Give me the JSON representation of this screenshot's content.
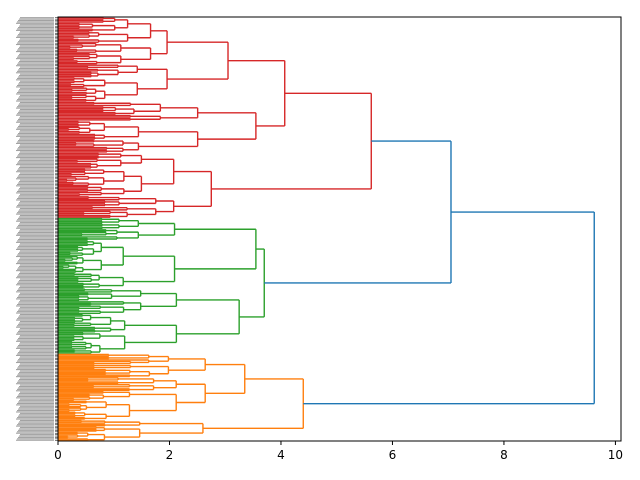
{
  "chart_data": {
    "type": "dendrogram",
    "orientation": "horizontal",
    "title": "",
    "xlabel": "",
    "ylabel": "",
    "xlim": [
      0,
      10.1
    ],
    "xticks": [
      0,
      2,
      4,
      6,
      8,
      10
    ],
    "xtick_labels": [
      "0",
      "2",
      "4",
      "6",
      "8",
      "10"
    ],
    "leaf_count_total": 300,
    "colors": {
      "cluster_red": "#d62728",
      "cluster_green": "#2ca02c",
      "cluster_orange": "#ff7f0e",
      "above_threshold": "#1f77b4",
      "axis": "#000000"
    },
    "clusters": [
      {
        "name": "red",
        "color": "#d62728",
        "leaf_count": 140,
        "leaf_span": [
          0.0,
          0.4737
        ],
        "root_height": 5.62,
        "subclusters": [
          {
            "span": [
              0.0,
              0.2
            ],
            "height": 3.05
          },
          {
            "span": [
              0.2,
              0.32
            ],
            "height": 3.55
          },
          {
            "span": [
              0.32,
              0.4737
            ],
            "height": 2.75
          }
        ]
      },
      {
        "name": "green",
        "color": "#2ca02c",
        "leaf_count": 96,
        "leaf_span": [
          0.4737,
          0.7944
        ],
        "root_height": 3.7,
        "subclusters": [
          {
            "span": [
              0.4737,
              0.64
            ],
            "height": 3.55
          },
          {
            "span": [
              0.64,
              0.7944
            ],
            "height": 3.25
          }
        ]
      },
      {
        "name": "orange",
        "color": "#ff7f0e",
        "leaf_count": 64,
        "leaf_span": [
          0.7944,
          1.0
        ],
        "root_height": 4.4,
        "subclusters": [
          {
            "span": [
              0.7944,
              0.95
            ],
            "height": 3.35
          },
          {
            "span": [
              0.95,
              1.0
            ],
            "height": 2.6
          }
        ]
      }
    ],
    "top_links": [
      {
        "name": "red-green",
        "height": 7.05
      },
      {
        "name": "root",
        "height": 9.62
      }
    ]
  }
}
